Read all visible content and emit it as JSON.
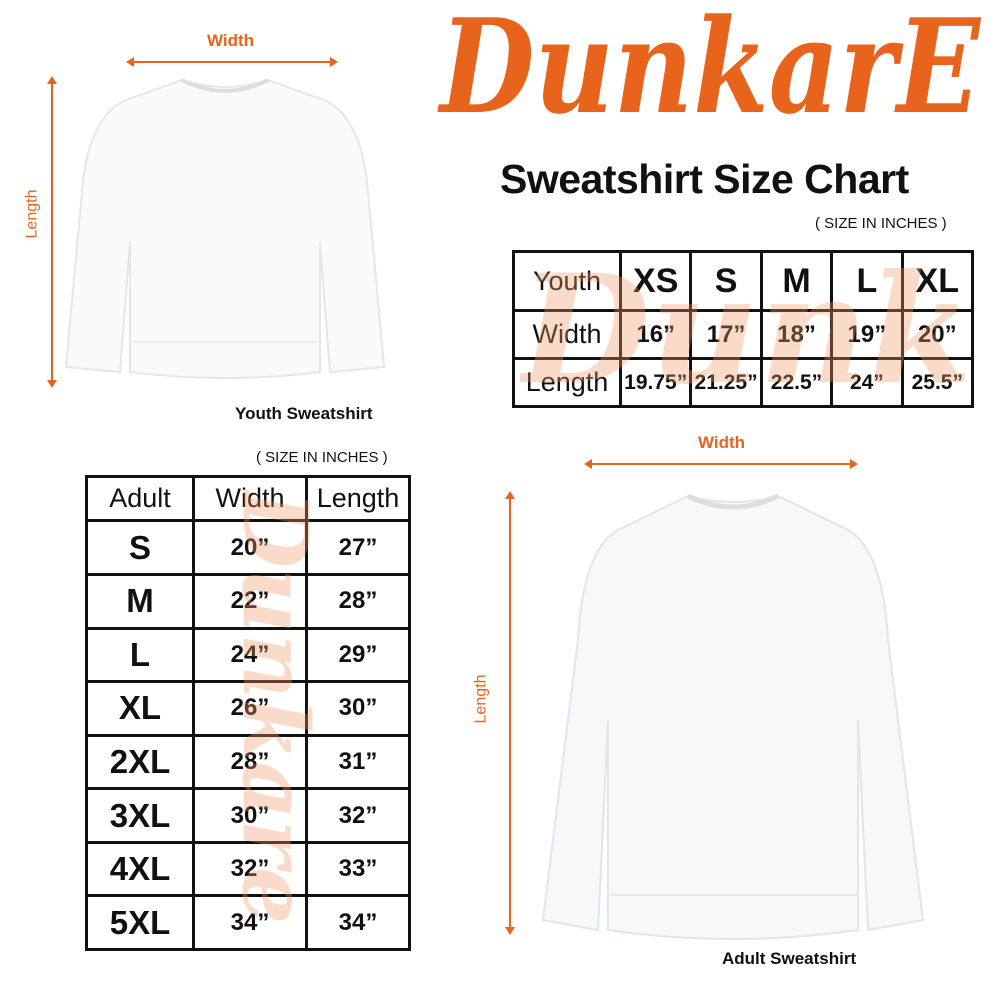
{
  "brand": {
    "logo_text": "DunkarE",
    "color": "#e8641c"
  },
  "title": "Sweatshirt Size Chart",
  "youth": {
    "size_note": "( SIZE IN INCHES )",
    "width_label": "Width",
    "length_label": "Length",
    "caption": "Youth Sweatshirt",
    "header": [
      "Youth",
      "XS",
      "S",
      "M",
      "L",
      "XL"
    ],
    "rows": [
      [
        "Width",
        "16”",
        "17”",
        "18”",
        "19”",
        "20”"
      ],
      [
        "Length",
        "19.75”",
        "21.25”",
        "22.5”",
        "24”",
        "25.5”"
      ]
    ]
  },
  "adult": {
    "size_note": "( SIZE IN INCHES )",
    "width_label": "Width",
    "length_label": "Length",
    "caption": "Adult Sweatshirt",
    "header": [
      "Adult",
      "Width",
      "Length"
    ],
    "rows": [
      [
        "S",
        "20”",
        "27”"
      ],
      [
        "M",
        "22”",
        "28”"
      ],
      [
        "L",
        "24”",
        "29”"
      ],
      [
        "XL",
        "26”",
        "30”"
      ],
      [
        "2XL",
        "28”",
        "31”"
      ],
      [
        "3XL",
        "30”",
        "32”"
      ],
      [
        "4XL",
        "32”",
        "33”"
      ],
      [
        "5XL",
        "34”",
        "34”"
      ]
    ]
  }
}
